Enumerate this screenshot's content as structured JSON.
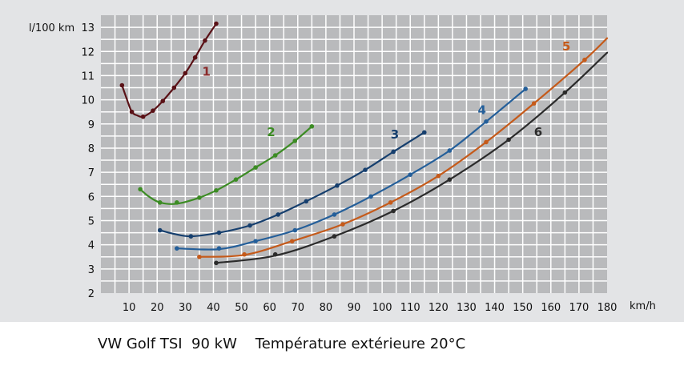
{
  "caption": "VW Golf TSI  90 kW    Température extérieure 20°C",
  "chart_data": {
    "type": "line",
    "ylabel": "l/100 km",
    "xlabel": "km/h",
    "xlim": [
      0,
      180
    ],
    "ylim": [
      2,
      13.5
    ],
    "x_ticks": [
      10,
      20,
      30,
      40,
      50,
      60,
      70,
      80,
      90,
      100,
      110,
      120,
      130,
      140,
      150,
      160,
      170,
      180
    ],
    "y_ticks": [
      2,
      3,
      4,
      5,
      6,
      7,
      8,
      9,
      10,
      11,
      12,
      13
    ],
    "grid": true,
    "series": [
      {
        "name": "1",
        "color": "#5a1116",
        "points": [
          [
            7.5,
            10.6
          ],
          [
            11,
            9.5
          ],
          [
            15,
            9.3
          ],
          [
            18.5,
            9.55
          ],
          [
            22,
            9.95
          ],
          [
            26,
            10.5
          ],
          [
            30,
            11.1
          ],
          [
            33.5,
            11.75
          ],
          [
            37,
            12.45
          ],
          [
            41,
            13.15
          ]
        ],
        "curve": [
          [
            7.5,
            10.6
          ],
          [
            9,
            10.1
          ],
          [
            11,
            9.5
          ],
          [
            13,
            9.35
          ],
          [
            15,
            9.3
          ],
          [
            18.5,
            9.55
          ],
          [
            22,
            9.95
          ],
          [
            26,
            10.5
          ],
          [
            30,
            11.1
          ],
          [
            33.5,
            11.75
          ],
          [
            37,
            12.45
          ],
          [
            41,
            13.15
          ]
        ]
      },
      {
        "name": "2",
        "color": "#3c8c24",
        "points": [
          [
            14,
            6.3
          ],
          [
            21,
            5.75
          ],
          [
            27,
            5.75
          ],
          [
            35,
            5.95
          ],
          [
            41,
            6.25
          ],
          [
            48,
            6.7
          ],
          [
            55,
            7.2
          ],
          [
            62,
            7.7
          ],
          [
            69,
            8.3
          ],
          [
            75,
            8.9
          ]
        ],
        "curve": [
          [
            14,
            6.3
          ],
          [
            17,
            6.0
          ],
          [
            21,
            5.75
          ],
          [
            27,
            5.7
          ],
          [
            35,
            5.95
          ],
          [
            41,
            6.25
          ],
          [
            48,
            6.7
          ],
          [
            55,
            7.2
          ],
          [
            62,
            7.7
          ],
          [
            69,
            8.3
          ],
          [
            75,
            8.9
          ]
        ]
      },
      {
        "name": "3",
        "color": "#163f6e",
        "points": [
          [
            21,
            4.6
          ],
          [
            32,
            4.35
          ],
          [
            42,
            4.5
          ],
          [
            53,
            4.8
          ],
          [
            63,
            5.25
          ],
          [
            73,
            5.8
          ],
          [
            84,
            6.45
          ],
          [
            94,
            7.1
          ],
          [
            104,
            7.85
          ],
          [
            115,
            8.65
          ]
        ],
        "curve": [
          [
            21,
            4.6
          ],
          [
            26,
            4.45
          ],
          [
            32,
            4.35
          ],
          [
            42,
            4.5
          ],
          [
            53,
            4.8
          ],
          [
            63,
            5.25
          ],
          [
            73,
            5.8
          ],
          [
            84,
            6.45
          ],
          [
            94,
            7.1
          ],
          [
            104,
            7.85
          ],
          [
            115,
            8.65
          ]
        ]
      },
      {
        "name": "4",
        "color": "#245f9a",
        "points": [
          [
            27,
            3.85
          ],
          [
            42,
            3.85
          ],
          [
            55,
            4.15
          ],
          [
            69,
            4.6
          ],
          [
            83,
            5.25
          ],
          [
            96,
            6.0
          ],
          [
            110,
            6.9
          ],
          [
            124,
            7.9
          ],
          [
            137,
            9.1
          ],
          [
            151,
            10.45
          ]
        ],
        "curve": [
          [
            27,
            3.85
          ],
          [
            42,
            3.82
          ],
          [
            55,
            4.15
          ],
          [
            69,
            4.6
          ],
          [
            83,
            5.25
          ],
          [
            96,
            6.0
          ],
          [
            110,
            6.9
          ],
          [
            124,
            7.9
          ],
          [
            137,
            9.1
          ],
          [
            151,
            10.45
          ]
        ]
      },
      {
        "name": "5",
        "color": "#c55a1a",
        "points": [
          [
            35,
            3.5
          ],
          [
            51,
            3.6
          ],
          [
            68,
            4.15
          ],
          [
            86,
            4.85
          ],
          [
            103,
            5.75
          ],
          [
            120,
            6.85
          ],
          [
            137,
            8.25
          ],
          [
            154,
            9.85
          ],
          [
            172,
            11.65
          ]
        ],
        "curve": [
          [
            35,
            3.5
          ],
          [
            51,
            3.58
          ],
          [
            68,
            4.15
          ],
          [
            86,
            4.85
          ],
          [
            103,
            5.75
          ],
          [
            120,
            6.85
          ],
          [
            137,
            8.25
          ],
          [
            154,
            9.85
          ],
          [
            172,
            11.65
          ],
          [
            180,
            12.55
          ]
        ]
      },
      {
        "name": "6",
        "color": "#2b2b2b",
        "points": [
          [
            41,
            3.25
          ],
          [
            62,
            3.6
          ],
          [
            83,
            4.35
          ],
          [
            104,
            5.4
          ],
          [
            124,
            6.7
          ],
          [
            145,
            8.35
          ],
          [
            165,
            10.3
          ]
        ],
        "curve": [
          [
            41,
            3.25
          ],
          [
            62,
            3.55
          ],
          [
            83,
            4.35
          ],
          [
            104,
            5.4
          ],
          [
            124,
            6.7
          ],
          [
            145,
            8.35
          ],
          [
            165,
            10.3
          ],
          [
            180,
            11.95
          ]
        ]
      }
    ],
    "curve_labels": [
      {
        "text": "1",
        "x": 37.5,
        "y": 11.0,
        "color": "#8a2a2a"
      },
      {
        "text": "2",
        "x": 60.5,
        "y": 8.5,
        "color": "#3c8c24"
      },
      {
        "text": "3",
        "x": 104.5,
        "y": 8.4,
        "color": "#163f6e"
      },
      {
        "text": "4",
        "x": 135.5,
        "y": 9.4,
        "color": "#245f9a"
      },
      {
        "text": "5",
        "x": 165.5,
        "y": 12.05,
        "color": "#c55a1a"
      },
      {
        "text": "6",
        "x": 155.5,
        "y": 8.5,
        "color": "#2b2b2b"
      }
    ]
  }
}
